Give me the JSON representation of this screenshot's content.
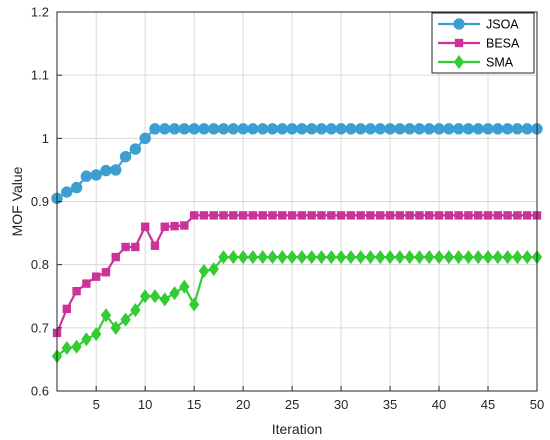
{
  "chart_data": {
    "type": "line",
    "xlabel": "Iteration",
    "ylabel": "MOF Value",
    "xlim": [
      1,
      50
    ],
    "ylim": [
      0.6,
      1.2
    ],
    "xticks": [
      5,
      10,
      15,
      20,
      25,
      30,
      35,
      40,
      45,
      50
    ],
    "yticks": [
      0.6,
      0.7,
      0.8,
      0.9,
      1.0,
      1.1,
      1.2
    ],
    "ytick_labels": [
      "0.6",
      "0.7",
      "0.8",
      "0.9",
      "1",
      "1.1",
      "1.2"
    ],
    "grid": true,
    "legend_position": "top-right",
    "x": [
      1,
      2,
      3,
      4,
      5,
      6,
      7,
      8,
      9,
      10,
      11,
      12,
      13,
      14,
      15,
      16,
      17,
      18,
      19,
      20,
      21,
      22,
      23,
      24,
      25,
      26,
      27,
      28,
      29,
      30,
      31,
      32,
      33,
      34,
      35,
      36,
      37,
      38,
      39,
      40,
      41,
      42,
      43,
      44,
      45,
      46,
      47,
      48,
      49,
      50
    ],
    "series": [
      {
        "name": "JSOA",
        "color": "#3b9fd1",
        "marker": "circle",
        "values": [
          0.905,
          0.915,
          0.922,
          0.94,
          0.942,
          0.949,
          0.95,
          0.971,
          0.983,
          1.0,
          1.015,
          1.015,
          1.015,
          1.015,
          1.015,
          1.015,
          1.015,
          1.015,
          1.015,
          1.015,
          1.015,
          1.015,
          1.015,
          1.015,
          1.015,
          1.015,
          1.015,
          1.015,
          1.015,
          1.015,
          1.015,
          1.015,
          1.015,
          1.015,
          1.015,
          1.015,
          1.015,
          1.015,
          1.015,
          1.015,
          1.015,
          1.015,
          1.015,
          1.015,
          1.015,
          1.015,
          1.015,
          1.015,
          1.015,
          1.015
        ]
      },
      {
        "name": "BESA",
        "color": "#cc3399",
        "marker": "square",
        "values": [
          0.692,
          0.73,
          0.758,
          0.77,
          0.781,
          0.788,
          0.812,
          0.828,
          0.828,
          0.86,
          0.83,
          0.86,
          0.861,
          0.862,
          0.878,
          0.878,
          0.878,
          0.878,
          0.878,
          0.878,
          0.878,
          0.878,
          0.878,
          0.878,
          0.878,
          0.878,
          0.878,
          0.878,
          0.878,
          0.878,
          0.878,
          0.878,
          0.878,
          0.878,
          0.878,
          0.878,
          0.878,
          0.878,
          0.878,
          0.878,
          0.878,
          0.878,
          0.878,
          0.878,
          0.878,
          0.878,
          0.878,
          0.878,
          0.878,
          0.878
        ]
      },
      {
        "name": "SMA",
        "color": "#33cc33",
        "marker": "diamond",
        "values": [
          0.655,
          0.668,
          0.67,
          0.682,
          0.69,
          0.72,
          0.7,
          0.713,
          0.728,
          0.75,
          0.75,
          0.745,
          0.755,
          0.765,
          0.737,
          0.79,
          0.793,
          0.812,
          0.812,
          0.812,
          0.812,
          0.812,
          0.812,
          0.812,
          0.812,
          0.812,
          0.812,
          0.812,
          0.812,
          0.812,
          0.812,
          0.812,
          0.812,
          0.812,
          0.812,
          0.812,
          0.812,
          0.812,
          0.812,
          0.812,
          0.812,
          0.812,
          0.812,
          0.812,
          0.812,
          0.812,
          0.812,
          0.812,
          0.812,
          0.812
        ]
      }
    ]
  }
}
